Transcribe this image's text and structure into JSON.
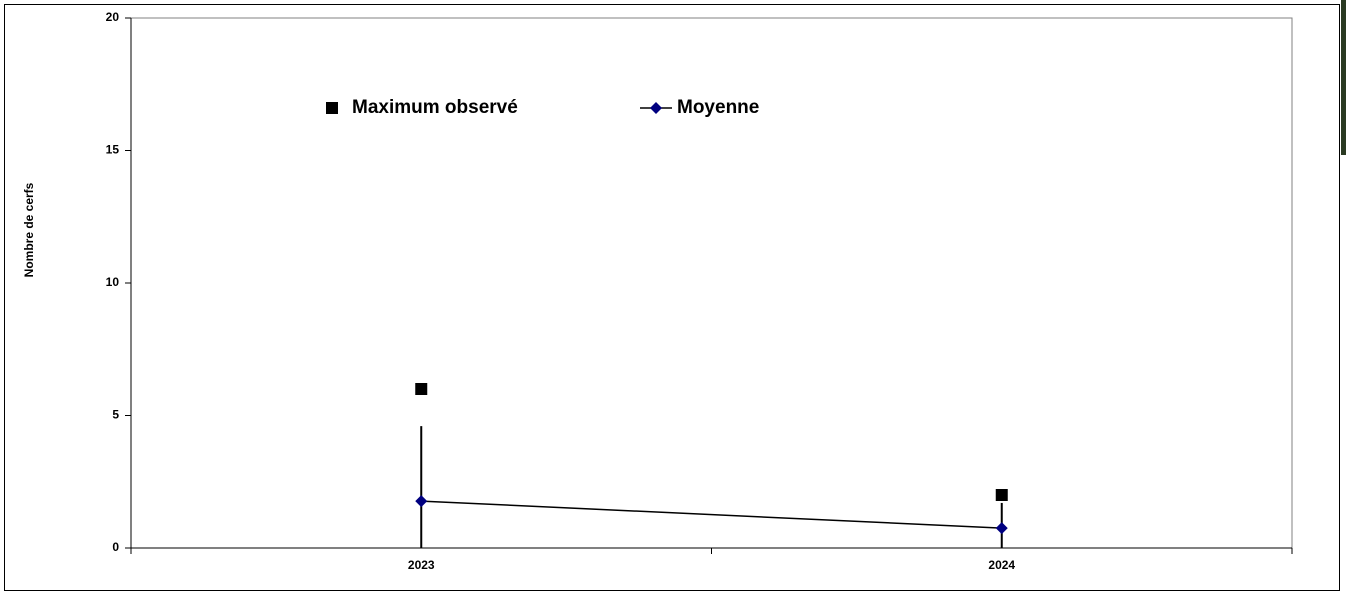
{
  "chart_data": {
    "type": "line",
    "y_label": "Nombre de cerfs",
    "categories": [
      "2023",
      "2024"
    ],
    "ylim": [
      0,
      20
    ],
    "yticks": [
      0,
      5,
      10,
      15,
      20
    ],
    "series": [
      {
        "name": "Maximum observé",
        "color": "#000000",
        "marker": "square",
        "line": false,
        "values": [
          6,
          2
        ]
      },
      {
        "name": "Moyenne",
        "color": "#000080",
        "marker": "diamond",
        "line": true,
        "values": [
          1.77,
          0.75
        ],
        "error": [
          2.83,
          0.95
        ]
      }
    ]
  }
}
